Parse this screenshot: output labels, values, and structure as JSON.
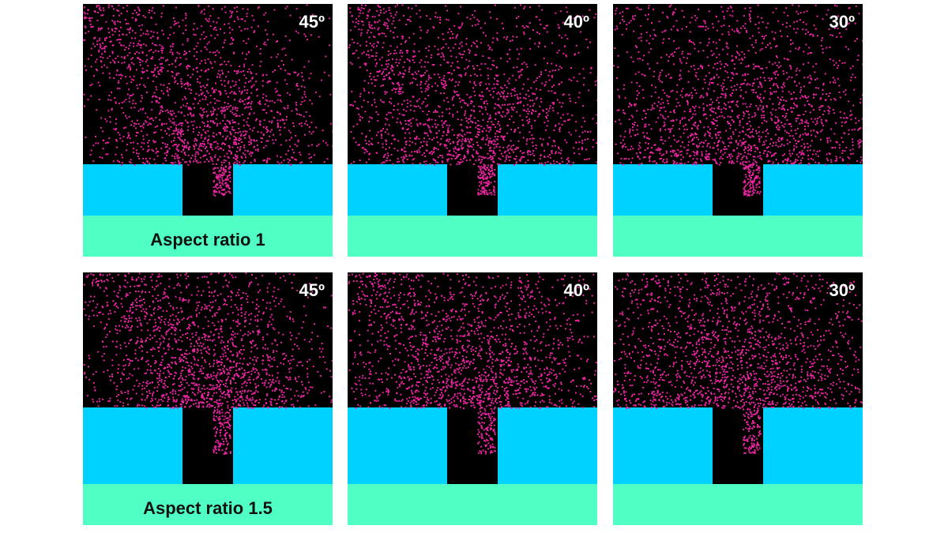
{
  "colors": {
    "background": "#000000",
    "particles": "#e8259e",
    "mask": "#00d2ff",
    "substrate": "#4fffc3"
  },
  "rows": [
    {
      "aspect_label": "Aspect ratio 1",
      "aspect_ratio": 1,
      "panels": [
        {
          "angle_label": "45º",
          "angle_deg": 45
        },
        {
          "angle_label": "40º",
          "angle_deg": 40
        },
        {
          "angle_label": "30º",
          "angle_deg": 30
        }
      ]
    },
    {
      "aspect_label": "Aspect ratio 1.5",
      "aspect_ratio": 1.5,
      "panels": [
        {
          "angle_label": "45º",
          "angle_deg": 45
        },
        {
          "angle_label": "40º",
          "angle_deg": 40
        },
        {
          "angle_label": "30º",
          "angle_deg": 30
        }
      ]
    }
  ]
}
